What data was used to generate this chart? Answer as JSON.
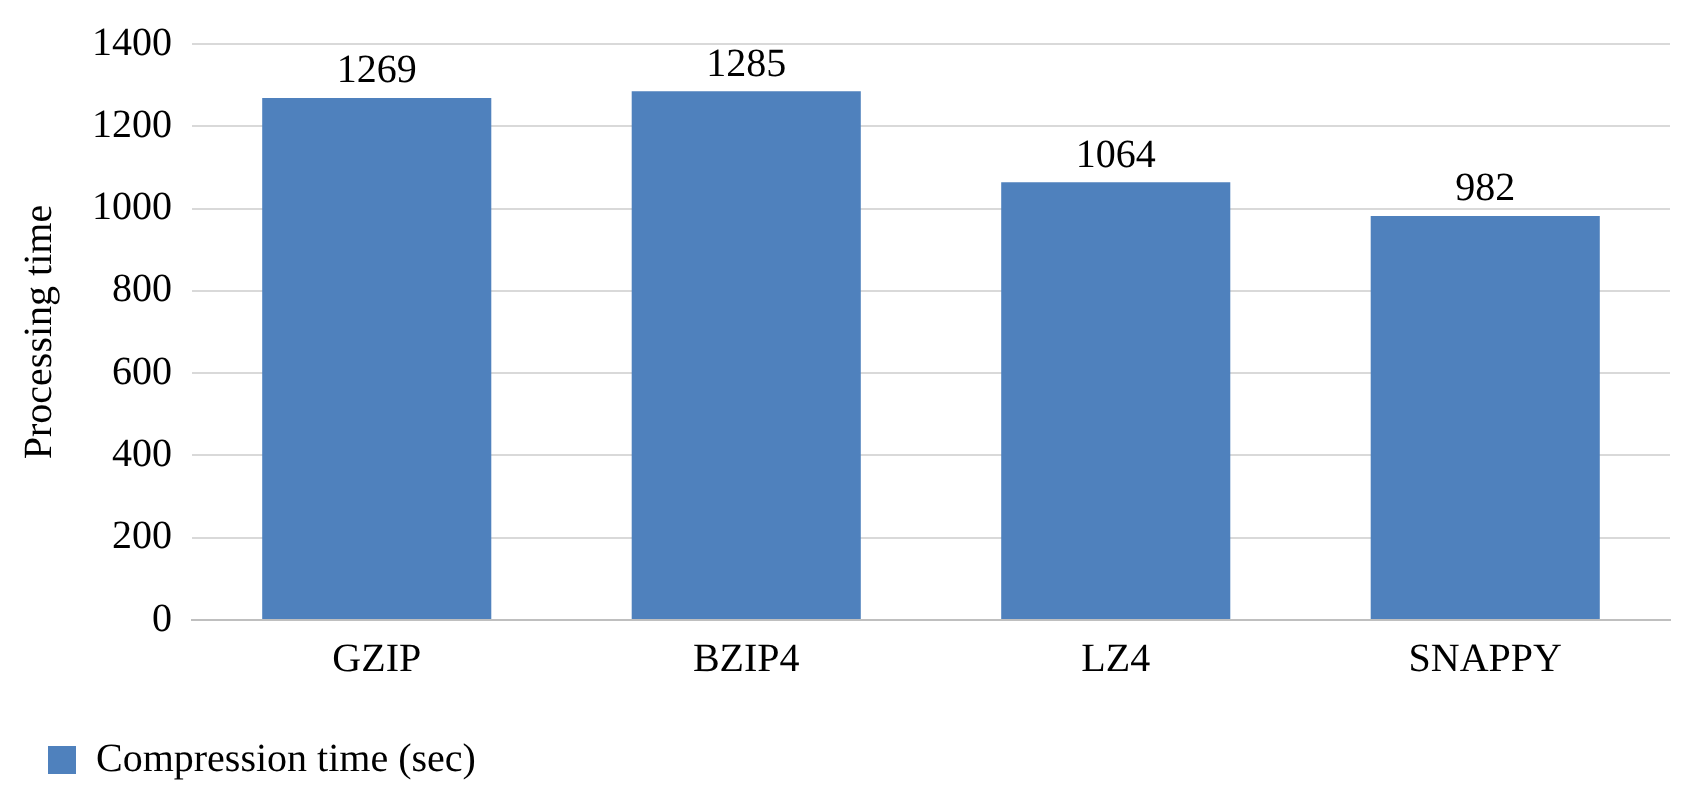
{
  "chart_data": {
    "type": "bar",
    "ylabel": "Processing time",
    "categories": [
      "GZIP",
      "BZIP4",
      "LZ4",
      "SNAPPY"
    ],
    "series": [
      {
        "name": "Compression time (sec)",
        "color": "#4f81bd",
        "values": [
          1269,
          1285,
          1064,
          982
        ]
      }
    ],
    "ylim": [
      0,
      1400
    ],
    "yticks": [
      0,
      200,
      400,
      600,
      800,
      1000,
      1200,
      1400
    ],
    "grid": "y",
    "legend": "bottom left",
    "data_labels": true
  }
}
